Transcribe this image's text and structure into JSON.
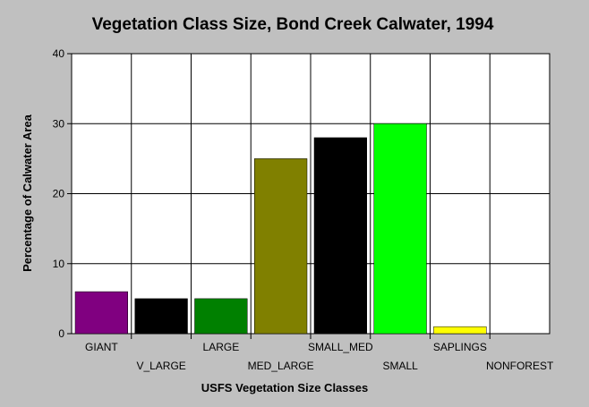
{
  "chart_data": {
    "type": "bar",
    "title": "Vegetation Class Size, Bond Creek Calwater, 1994",
    "xlabel": "USFS Vegetation Size Classes",
    "ylabel": "Percentage of Calwater Area",
    "ylim": [
      0,
      40
    ],
    "yticks": [
      0,
      10,
      20,
      30,
      40
    ],
    "grid": true,
    "categories": [
      "GIANT",
      "V_LARGE",
      "LARGE",
      "MED_LARGE",
      "SMALL_MED",
      "SMALL",
      "SAPLINGS",
      "NONFOREST"
    ],
    "values": [
      6,
      5,
      5,
      25,
      28,
      30,
      1,
      0
    ],
    "colors": [
      "#800080",
      "#1a5c1a",
      "#008000",
      "#808000",
      "#2f8f2f",
      "#00ff00",
      "#ffff00",
      "#ffffff"
    ],
    "hatched": [
      false,
      true,
      false,
      false,
      true,
      false,
      false,
      false
    ]
  }
}
